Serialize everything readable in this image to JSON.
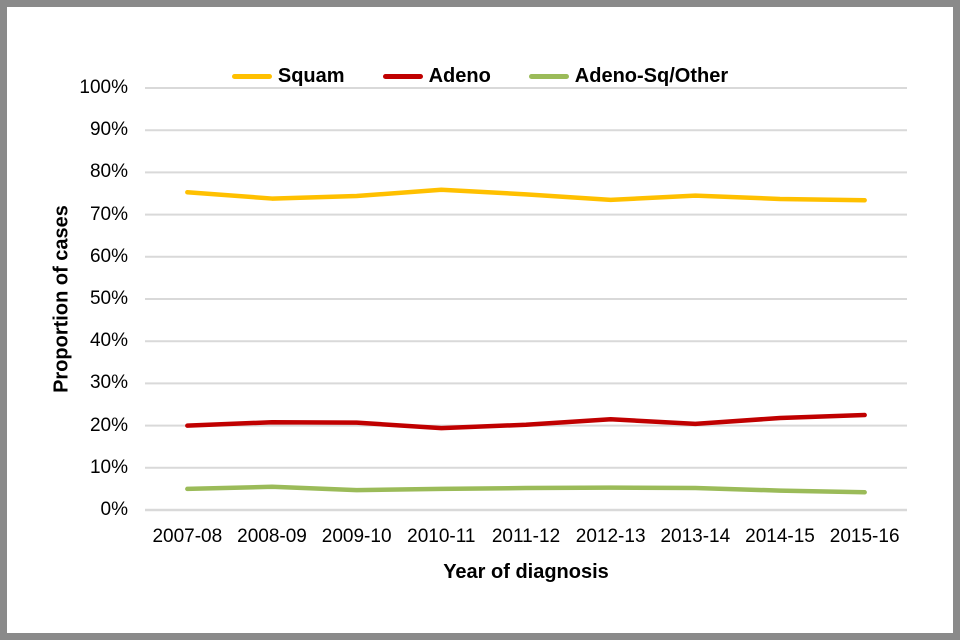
{
  "figure": {
    "frame_border_color": "#8a8a8a",
    "background_color": "#ffffff",
    "text_color": "#000000"
  },
  "chart_data": {
    "type": "line",
    "title": "",
    "xlabel": "Year of diagnosis",
    "ylabel": "Proportion of cases",
    "categories": [
      "2007-08",
      "2008-09",
      "2009-10",
      "2010-11",
      "2011-12",
      "2012-13",
      "2013-14",
      "2014-15",
      "2015-16"
    ],
    "series": [
      {
        "name": "Squam",
        "color": "#FFC000",
        "values": [
          75.3,
          73.8,
          74.4,
          75.9,
          74.8,
          73.5,
          74.5,
          73.7,
          73.4
        ]
      },
      {
        "name": "Adeno",
        "color": "#C00000",
        "values": [
          20.0,
          20.8,
          20.7,
          19.4,
          20.2,
          21.5,
          20.4,
          21.8,
          22.5
        ]
      },
      {
        "name": "Adeno-Sq/Other",
        "color": "#9BBB59",
        "values": [
          5.0,
          5.5,
          4.7,
          5.0,
          5.2,
          5.3,
          5.2,
          4.6,
          4.2
        ]
      }
    ],
    "ylim": [
      0,
      100
    ],
    "y_tick_step": 10,
    "y_tick_labels": [
      "0%",
      "10%",
      "20%",
      "30%",
      "40%",
      "50%",
      "60%",
      "70%",
      "80%",
      "90%",
      "100%"
    ],
    "grid": "horizontal",
    "gridline_color": "#D9D9D9",
    "legend_position": "top"
  }
}
